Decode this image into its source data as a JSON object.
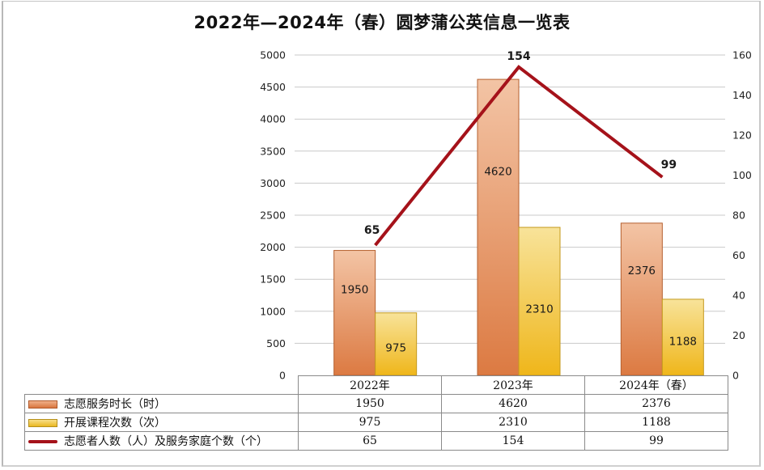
{
  "chart_data": {
    "type": "bar",
    "title": "2022年—2024年（春）圆梦蒲公英信息一览表",
    "categories": [
      "2022年",
      "2023年",
      "2024年（春）"
    ],
    "series": [
      {
        "name": "志愿服务时长（时）",
        "type": "bar",
        "axis": "left",
        "color": "#e08a55",
        "values": [
          1950,
          4620,
          2376
        ],
        "labels": [
          "1950",
          "4620",
          "2376"
        ]
      },
      {
        "name": "开展课程次数（次）",
        "type": "bar",
        "axis": "left",
        "color": "#f1c940",
        "values": [
          975,
          2310,
          1188
        ],
        "labels": [
          "975",
          "2310",
          "1188"
        ]
      },
      {
        "name": "志愿者人数（人）及服务家庭个数（个）",
        "type": "line",
        "axis": "right",
        "color": "#a5121a",
        "values": [
          65,
          154,
          99
        ],
        "labels": [
          "65",
          "154",
          "99"
        ]
      }
    ],
    "y_left": {
      "min": 0,
      "max": 5000,
      "step": 500,
      "ticks": [
        "0",
        "500",
        "1000",
        "1500",
        "2000",
        "2500",
        "3000",
        "3500",
        "4000",
        "4500",
        "5000"
      ]
    },
    "y_right": {
      "min": 0,
      "max": 160,
      "step": 20,
      "ticks": [
        "0",
        "20",
        "40",
        "60",
        "80",
        "100",
        "120",
        "140",
        "160"
      ]
    },
    "grid": true,
    "legend": "data-table-bottom",
    "data_table": {
      "header": [
        "2022年",
        "2023年",
        "2024年（春）"
      ],
      "rows": [
        {
          "label": "志愿服务时长（时）",
          "swatch": "orange",
          "values": [
            "1950",
            "4620",
            "2376"
          ]
        },
        {
          "label": "开展课程次数（次）",
          "swatch": "yellow",
          "values": [
            "975",
            "2310",
            "1188"
          ]
        },
        {
          "label": "志愿者人数（人）及服务家庭个数（个）",
          "swatch": "line",
          "values": [
            "65",
            "154",
            "99"
          ]
        }
      ]
    }
  }
}
